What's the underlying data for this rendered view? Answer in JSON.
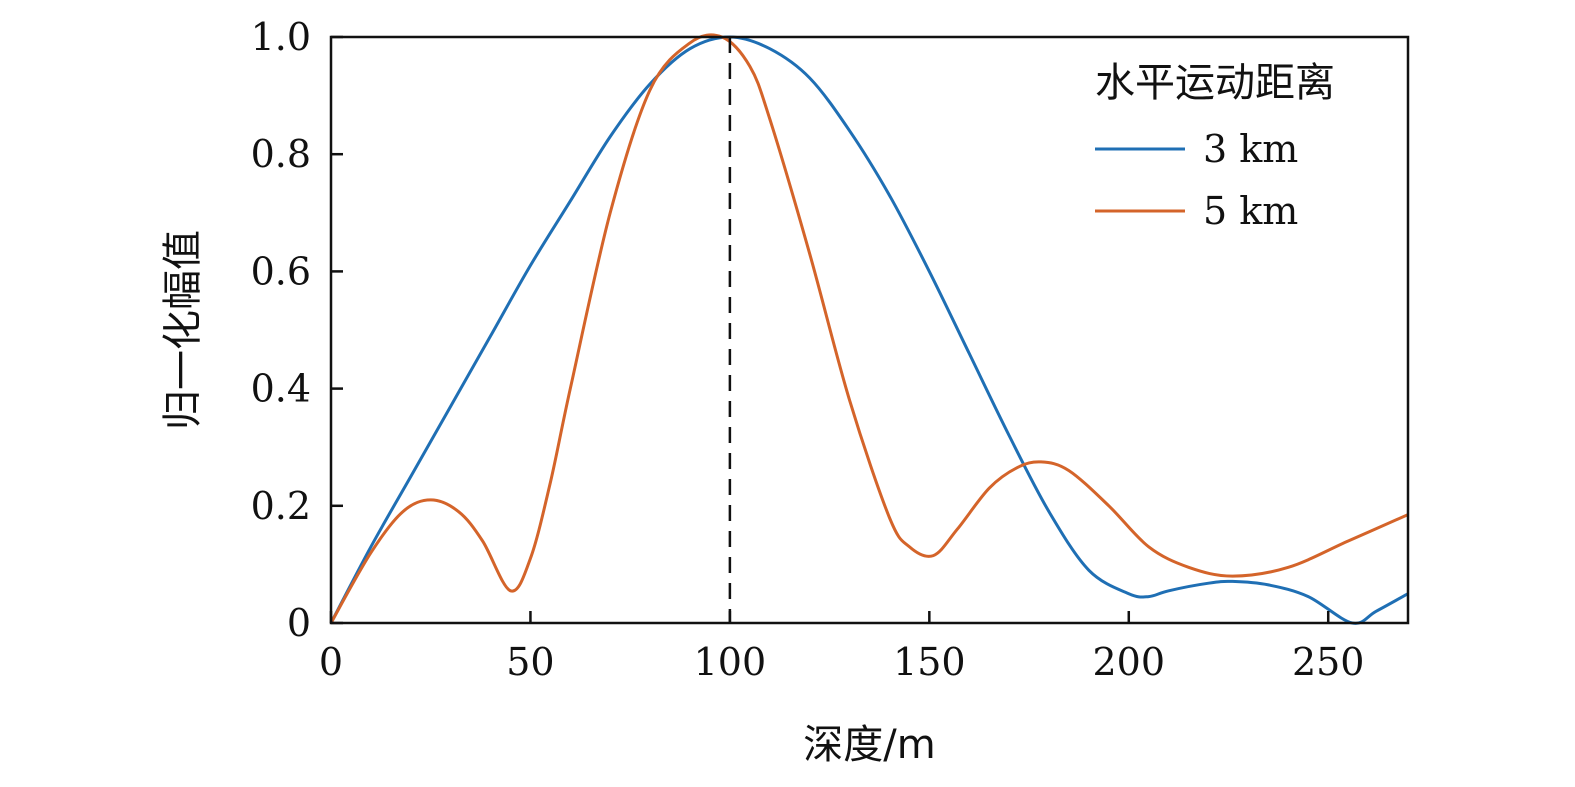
{
  "chart_data": {
    "type": "line",
    "xlabel": "深度/m",
    "ylabel": "归一化幅值",
    "xlim": [
      0,
      270
    ],
    "ylim": [
      0,
      1.0
    ],
    "xticks": [
      0,
      50,
      100,
      150,
      200,
      250
    ],
    "xtick_labels": [
      "0",
      "50",
      "100",
      "150",
      "200",
      "250"
    ],
    "yticks": [
      0,
      0.2,
      0.4,
      0.6,
      0.8,
      1.0
    ],
    "ytick_labels": [
      "0",
      "0.2",
      "0.4",
      "0.6",
      "0.8",
      "1.0"
    ],
    "grid": false,
    "legend": {
      "title": "水平运动距离",
      "placement": "top-right"
    },
    "vline": {
      "x": 100,
      "style": "dashed"
    },
    "series": [
      {
        "name": "3 km",
        "color": "#1f6fb4",
        "x": [
          0,
          10,
          20,
          30,
          40,
          50,
          60,
          70,
          80,
          90,
          100,
          110,
          120,
          130,
          140,
          150,
          160,
          170,
          180,
          190,
          200,
          205,
          210,
          220,
          226,
          235,
          245,
          256,
          262,
          270
        ],
        "y": [
          0,
          0.13,
          0.25,
          0.37,
          0.49,
          0.61,
          0.72,
          0.83,
          0.92,
          0.98,
          1.0,
          0.98,
          0.93,
          0.84,
          0.73,
          0.6,
          0.46,
          0.32,
          0.19,
          0.09,
          0.05,
          0.045,
          0.055,
          0.068,
          0.071,
          0.065,
          0.045,
          0.0,
          0.02,
          0.05
        ]
      },
      {
        "name": "5 km",
        "color": "#d4642a",
        "x": [
          0,
          10,
          18,
          25,
          32,
          38,
          45,
          50,
          55,
          60,
          70,
          80,
          90,
          98,
          105,
          110,
          120,
          130,
          140,
          145,
          151,
          157,
          165,
          172,
          178,
          185,
          195,
          205,
          215,
          226,
          240,
          255,
          270
        ],
        "y": [
          0,
          0.12,
          0.19,
          0.21,
          0.19,
          0.14,
          0.055,
          0.11,
          0.24,
          0.4,
          0.7,
          0.91,
          0.99,
          1.0,
          0.95,
          0.86,
          0.63,
          0.38,
          0.18,
          0.13,
          0.115,
          0.16,
          0.23,
          0.265,
          0.275,
          0.26,
          0.2,
          0.13,
          0.095,
          0.08,
          0.095,
          0.14,
          0.185
        ]
      }
    ]
  }
}
